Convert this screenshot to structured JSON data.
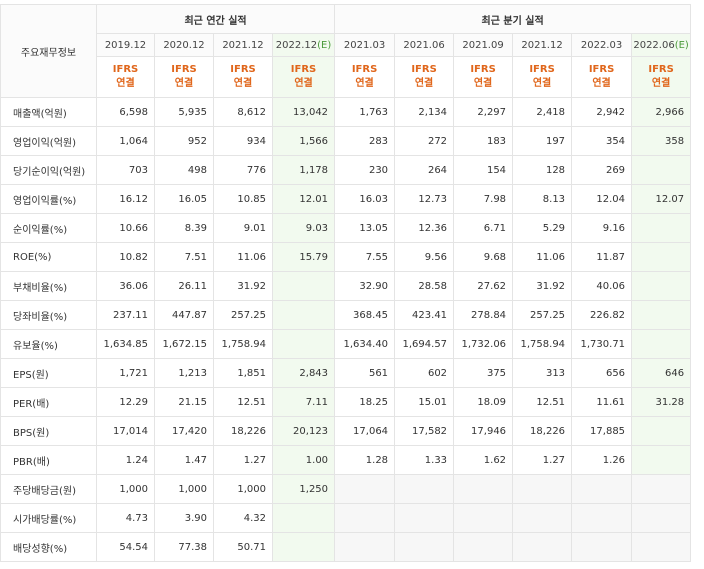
{
  "header": {
    "annual_title": "최근 연간 실적",
    "quarter_title": "최근 분기 실적",
    "corner_label": "주요재무정보",
    "annual_periods": [
      {
        "label": "2019.12",
        "est": ""
      },
      {
        "label": "2020.12",
        "est": ""
      },
      {
        "label": "2021.12",
        "est": ""
      },
      {
        "label": "2022.12",
        "est": "(E)"
      }
    ],
    "quarter_periods": [
      {
        "label": "2021.03",
        "est": ""
      },
      {
        "label": "2021.06",
        "est": ""
      },
      {
        "label": "2021.09",
        "est": ""
      },
      {
        "label": "2021.12",
        "est": ""
      },
      {
        "label": "2022.03",
        "est": ""
      },
      {
        "label": "2022.06",
        "est": "(E)"
      }
    ],
    "ifrs_line1": "IFRS",
    "ifrs_line2": "연결"
  },
  "rows": [
    {
      "label": "매출액(억원)",
      "values": [
        "6,598",
        "5,935",
        "8,612",
        "13,042",
        "1,763",
        "2,134",
        "2,297",
        "2,418",
        "2,942",
        "2,966"
      ]
    },
    {
      "label": "영업이익(억원)",
      "values": [
        "1,064",
        "952",
        "934",
        "1,566",
        "283",
        "272",
        "183",
        "197",
        "354",
        "358"
      ]
    },
    {
      "label": "당기순이익(억원)",
      "values": [
        "703",
        "498",
        "776",
        "1,178",
        "230",
        "264",
        "154",
        "128",
        "269",
        ""
      ]
    },
    {
      "label": "영업이익률(%)",
      "values": [
        "16.12",
        "16.05",
        "10.85",
        "12.01",
        "16.03",
        "12.73",
        "7.98",
        "8.13",
        "12.04",
        "12.07"
      ]
    },
    {
      "label": "순이익률(%)",
      "values": [
        "10.66",
        "8.39",
        "9.01",
        "9.03",
        "13.05",
        "12.36",
        "6.71",
        "5.29",
        "9.16",
        ""
      ]
    },
    {
      "label": "ROE(%)",
      "values": [
        "10.82",
        "7.51",
        "11.06",
        "15.79",
        "7.55",
        "9.56",
        "9.68",
        "11.06",
        "11.87",
        ""
      ]
    },
    {
      "label": "부채비율(%)",
      "values": [
        "36.06",
        "26.11",
        "31.92",
        "",
        "32.90",
        "28.58",
        "27.62",
        "31.92",
        "40.06",
        ""
      ]
    },
    {
      "label": "당좌비율(%)",
      "values": [
        "237.11",
        "447.87",
        "257.25",
        "",
        "368.45",
        "423.41",
        "278.84",
        "257.25",
        "226.82",
        ""
      ]
    },
    {
      "label": "유보율(%)",
      "values": [
        "1,634.85",
        "1,672.15",
        "1,758.94",
        "",
        "1,634.40",
        "1,694.57",
        "1,732.06",
        "1,758.94",
        "1,730.71",
        ""
      ]
    },
    {
      "label": "EPS(원)",
      "values": [
        "1,721",
        "1,213",
        "1,851",
        "2,843",
        "561",
        "602",
        "375",
        "313",
        "656",
        "646"
      ]
    },
    {
      "label": "PER(배)",
      "values": [
        "12.29",
        "21.15",
        "12.51",
        "7.11",
        "18.25",
        "15.01",
        "18.09",
        "12.51",
        "11.61",
        "31.28"
      ]
    },
    {
      "label": "BPS(원)",
      "values": [
        "17,014",
        "17,420",
        "18,226",
        "20,123",
        "17,064",
        "17,582",
        "17,946",
        "18,226",
        "17,885",
        ""
      ]
    },
    {
      "label": "PBR(배)",
      "values": [
        "1.24",
        "1.47",
        "1.27",
        "1.00",
        "1.28",
        "1.33",
        "1.62",
        "1.27",
        "1.26",
        ""
      ]
    },
    {
      "label": "주당배당금(원)",
      "values": [
        "1,000",
        "1,000",
        "1,000",
        "1,250",
        "",
        "",
        "",
        "",
        "",
        ""
      ]
    },
    {
      "label": "시가배당률(%)",
      "values": [
        "4.73",
        "3.90",
        "4.32",
        "",
        "",
        "",
        "",
        "",
        "",
        ""
      ]
    },
    {
      "label": "배당성향(%)",
      "values": [
        "54.54",
        "77.38",
        "50.71",
        "",
        "",
        "",
        "",
        "",
        "",
        ""
      ]
    }
  ]
}
